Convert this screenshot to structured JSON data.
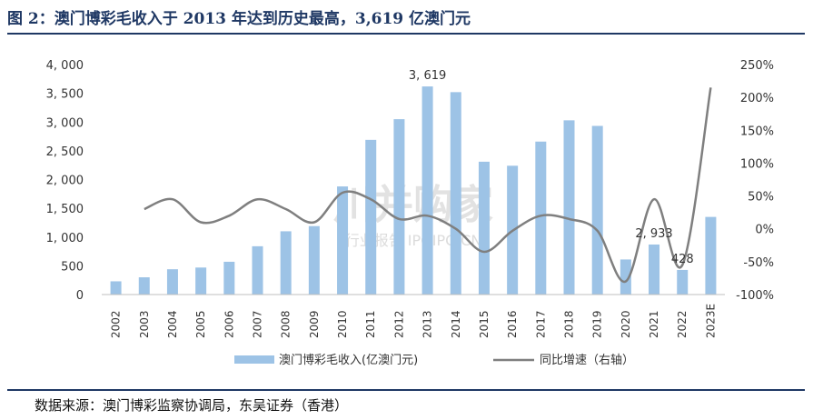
{
  "title": "图 2：澳门博彩毛收入于 2013 年达到历史最高，3,619 亿澳门元",
  "source": "数据来源：澳门博彩监察协调局，东吴证券（香港）",
  "watermark": {
    "main": "川并购家",
    "sub": "行业报告 IPOIPO.CN"
  },
  "chart_data": {
    "type": "bar",
    "categories": [
      "2002",
      "2003",
      "2004",
      "2005",
      "2006",
      "2007",
      "2008",
      "2009",
      "2010",
      "2011",
      "2012",
      "2013",
      "2014",
      "2015",
      "2016",
      "2017",
      "2018",
      "2019",
      "2020",
      "2021",
      "2022",
      "2023E"
    ],
    "series": [
      {
        "name": "澳门博彩毛收入(亿澳门元)",
        "type": "bar",
        "axis": "left",
        "color": "#9dc3e6",
        "values": [
          230,
          300,
          440,
          470,
          570,
          840,
          1100,
          1190,
          1880,
          2690,
          3050,
          3619,
          3520,
          2310,
          2240,
          2660,
          3030,
          2933,
          610,
          870,
          428,
          1350
        ]
      },
      {
        "name": "同比增速（右轴）",
        "type": "line",
        "axis": "right",
        "color": "#7f7f7f",
        "values": [
          null,
          30,
          45,
          10,
          20,
          45,
          30,
          10,
          55,
          45,
          15,
          20,
          0,
          -35,
          -3,
          20,
          15,
          -3,
          -80,
          45,
          -55,
          215
        ]
      }
    ],
    "data_labels": [
      {
        "index": 11,
        "text": "3, 619"
      },
      {
        "index": 19,
        "text": "2, 933"
      },
      {
        "index": 20,
        "text": "428"
      }
    ],
    "y_left": {
      "min": 0,
      "max": 4000,
      "ticks": [
        0,
        500,
        1000,
        1500,
        2000,
        2500,
        3000,
        3500,
        4000
      ],
      "tick_labels": [
        "0",
        "500",
        "1, 000",
        "1, 500",
        "2, 000",
        "2, 500",
        "3, 000",
        "3, 500",
        "4, 000"
      ]
    },
    "y_right": {
      "min": -100,
      "max": 250,
      "ticks": [
        -100,
        -50,
        0,
        50,
        100,
        150,
        200,
        250
      ],
      "tick_labels": [
        "-100%",
        "-50%",
        "0%",
        "50%",
        "100%",
        "150%",
        "200%",
        "250%"
      ]
    },
    "grid": false,
    "legend": "bottom"
  }
}
